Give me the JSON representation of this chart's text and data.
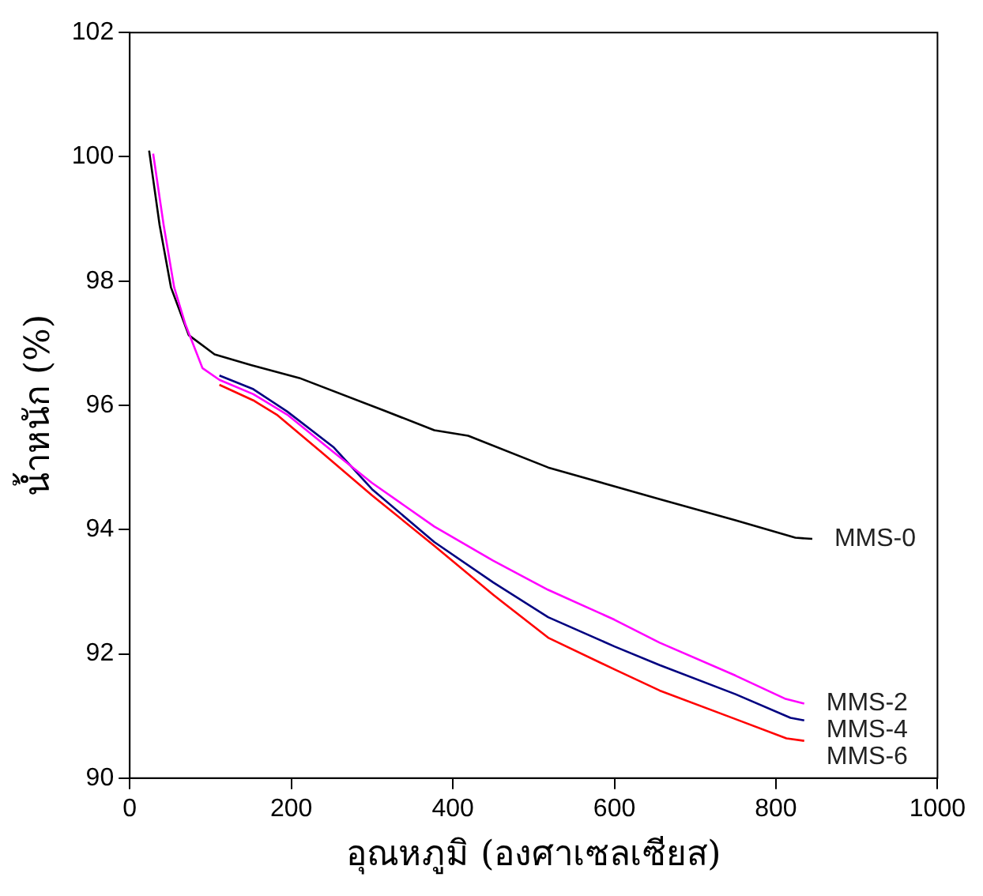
{
  "chart_data": {
    "type": "line",
    "xlabel": "อุณหภูมิ (องศาเซลเซียส)",
    "ylabel": "น้ำหนัก (%)",
    "xlim": [
      0,
      1000
    ],
    "xticks": [
      0,
      200,
      400,
      600,
      800,
      1000
    ],
    "ylim": [
      90,
      102
    ],
    "yticks": [
      90,
      92,
      94,
      96,
      98,
      100,
      102
    ],
    "grid": false,
    "legend": false,
    "marker": "none",
    "line_style": "solid",
    "series": [
      {
        "name": "MMS-0",
        "color": "#000000",
        "x": [
          24,
          37,
          51,
          73,
          105,
          150,
          210,
          314,
          377,
          419,
          518,
          656,
          750,
          824,
          845
        ],
        "values": [
          100.1,
          98.9,
          97.9,
          97.13,
          96.82,
          96.65,
          96.44,
          95.92,
          95.6,
          95.51,
          95.0,
          94.49,
          94.15,
          93.87,
          93.85
        ]
      },
      {
        "name": "MMS-2",
        "color": "#ff00ff",
        "x": [
          29,
          42,
          55,
          69,
          90,
          111,
          153,
          195,
          252,
          300,
          377,
          450,
          518,
          600,
          656,
          750,
          811,
          835
        ],
        "values": [
          100.05,
          98.9,
          97.9,
          97.3,
          96.6,
          96.41,
          96.18,
          95.85,
          95.25,
          94.75,
          94.05,
          93.5,
          93.03,
          92.55,
          92.18,
          91.65,
          91.28,
          91.2
        ]
      },
      {
        "name": "MMS-4",
        "color": "#000080",
        "x": [
          111,
          153,
          195,
          252,
          300,
          377,
          450,
          518,
          600,
          656,
          750,
          818,
          835
        ],
        "values": [
          96.48,
          96.26,
          95.9,
          95.33,
          94.65,
          93.8,
          93.15,
          92.59,
          92.12,
          91.82,
          91.35,
          90.97,
          90.93
        ]
      },
      {
        "name": "MMS-6",
        "color": "#ff0000",
        "x": [
          111,
          153,
          182,
          237,
          300,
          377,
          450,
          518,
          600,
          656,
          750,
          813,
          835
        ],
        "values": [
          96.33,
          96.08,
          95.85,
          95.25,
          94.55,
          93.74,
          92.95,
          92.26,
          91.75,
          91.41,
          90.95,
          90.64,
          90.6
        ]
      }
    ]
  }
}
